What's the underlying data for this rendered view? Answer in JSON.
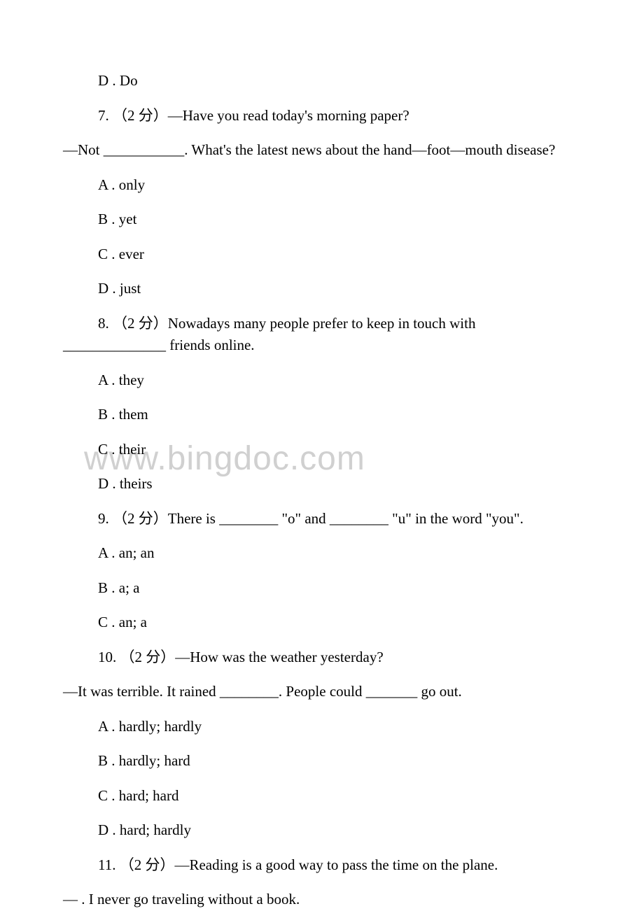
{
  "watermark": "www.bingdoc.com",
  "q6_options": {
    "d": "D . Do"
  },
  "q7": {
    "line1": "7. （2 分）—Have you read today's morning paper?",
    "line2": "—Not ___________. What's the latest news about the hand—foot—mouth disease?",
    "a": "A . only",
    "b": "B . yet",
    "c": "C . ever",
    "d": "D . just"
  },
  "q8": {
    "line1": "8. （2 分）Nowadays many people prefer to keep in touch with ______________ friends online.",
    "a": "A . they",
    "b": "B . them",
    "c": "C . their",
    "d": "D . theirs"
  },
  "q9": {
    "line1": "9. （2 分）There is ________  \"o\" and ________  \"u\" in the word \"you\".",
    "a": "A . an; an",
    "b": "B . a; a",
    "c": "C . an; a"
  },
  "q10": {
    "line1": "10. （2 分）—How was the weather yesterday?",
    "line2": "—It was terrible. It rained ________. People could _______ go out.",
    "a": "A . hardly; hardly",
    "b": "B . hardly; hard",
    "c": "C . hard; hard",
    "d": "D . hard; hardly"
  },
  "q11": {
    "line1": "11. （2 分）—Reading is a good way to pass the time on the plane.",
    "line2": "—     . I never go traveling without a book."
  }
}
